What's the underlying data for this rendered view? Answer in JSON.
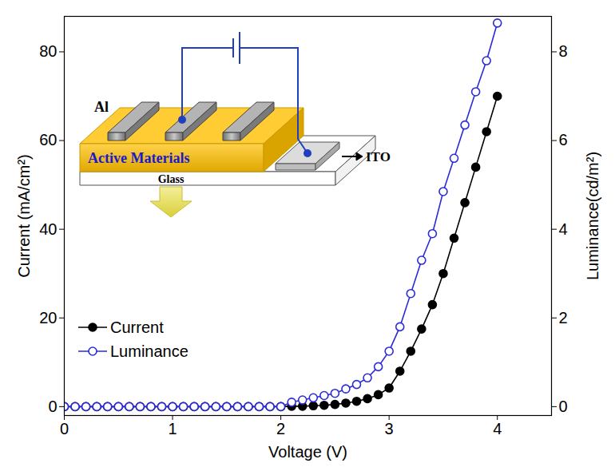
{
  "chart_data": {
    "type": "line",
    "x_label": "Voltage (V)",
    "y_label": "Current (mA/cm²)",
    "y2_label": "Luminance(cd/m²)",
    "x": [
      0,
      0.1,
      0.2,
      0.3,
      0.4,
      0.5,
      0.6,
      0.7,
      0.8,
      0.9,
      1.0,
      1.1,
      1.2,
      1.3,
      1.4,
      1.5,
      1.6,
      1.7,
      1.8,
      1.9,
      2.0,
      2.1,
      2.2,
      2.3,
      2.4,
      2.5,
      2.6,
      2.7,
      2.8,
      2.9,
      3.0,
      3.1,
      3.2,
      3.3,
      3.4,
      3.5,
      3.6,
      3.7,
      3.8,
      3.9,
      4.0
    ],
    "series": [
      {
        "name": "Current",
        "color": "#000000",
        "marker": "circle",
        "values": [
          0,
          0,
          0,
          0,
          0,
          0,
          0,
          0,
          0,
          0,
          0,
          0,
          0,
          0,
          0,
          0,
          0,
          0,
          0,
          0,
          0,
          0.1,
          0.1,
          0.2,
          0.3,
          0.5,
          0.8,
          1.2,
          1.8,
          2.7,
          4.2,
          8.0,
          12.5,
          17.5,
          23,
          30,
          38,
          46,
          54,
          62,
          70
        ]
      },
      {
        "name": "Luminance",
        "color": "#2b2bd9",
        "marker": "open circle",
        "axis": "y2",
        "values": [
          0,
          0,
          0,
          0,
          0,
          0,
          0,
          0,
          0,
          0,
          0,
          0,
          0,
          0,
          0,
          0,
          0,
          0,
          0,
          0,
          0,
          0.1,
          0.15,
          0.2,
          0.25,
          0.3,
          0.4,
          0.5,
          0.65,
          0.9,
          1.25,
          1.8,
          2.55,
          3.3,
          3.9,
          4.85,
          5.6,
          6.35,
          7.1,
          7.8,
          8.65
        ]
      }
    ],
    "xlim": [
      0,
      4.5
    ],
    "xticks": [
      0,
      1,
      2,
      3,
      4
    ],
    "ylim": [
      -2,
      88
    ],
    "yticks": [
      0,
      20,
      40,
      60,
      80
    ],
    "y2lim": [
      -0.2,
      8.8
    ],
    "y2ticks": [
      0,
      2,
      4,
      6,
      8
    ],
    "legend": "lower left",
    "annotations": [
      "Al",
      "Active Materials",
      "ITO",
      "Glass"
    ]
  }
}
